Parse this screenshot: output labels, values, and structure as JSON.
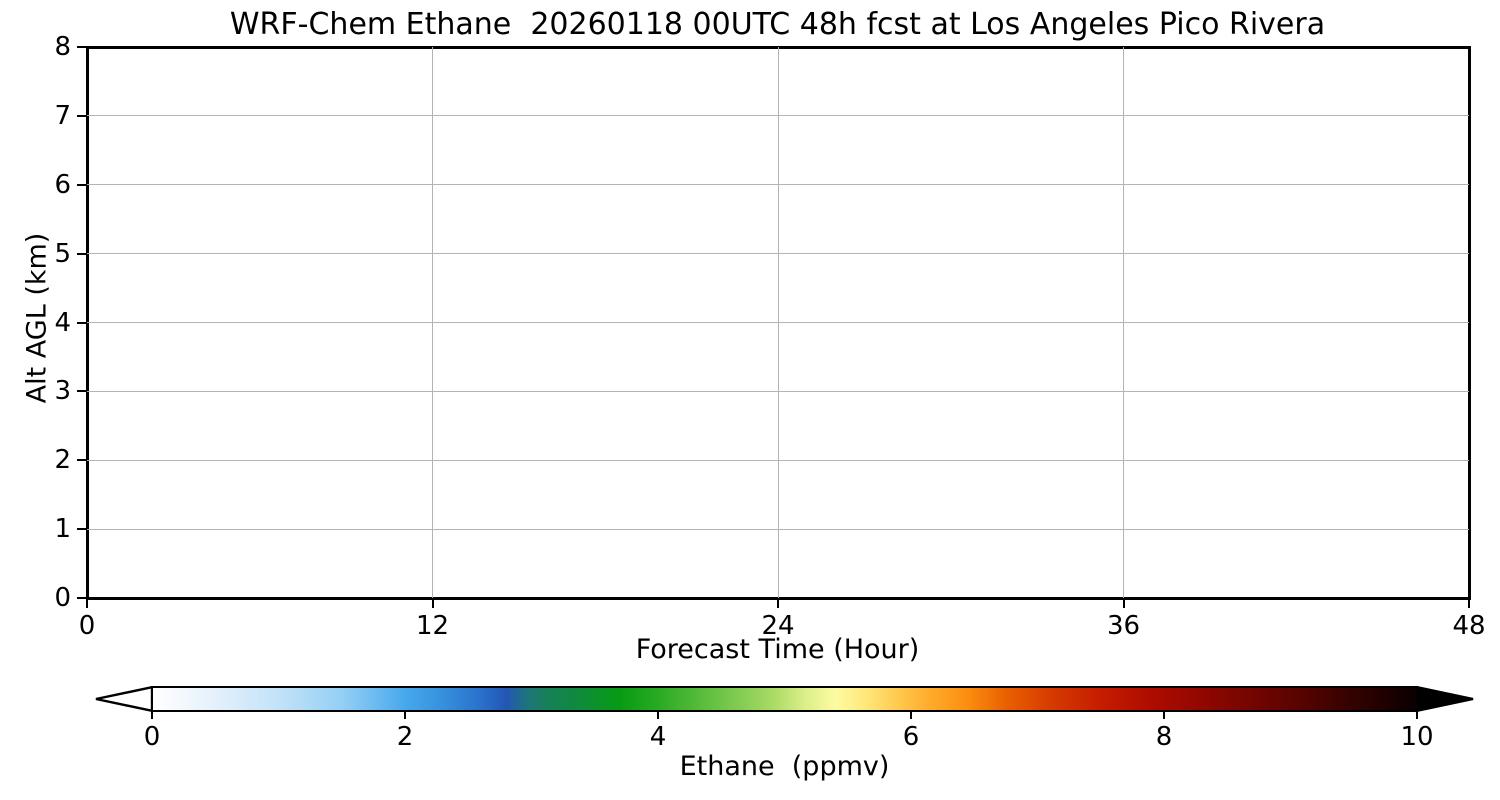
{
  "chart_data": {
    "type": "heatmap",
    "title": "WRF-Chem Ethane  20260118 00UTC 48h fcst at Los Angeles Pico Rivera",
    "xlabel": "Forecast Time (Hour)",
    "ylabel": "Alt AGL (km)",
    "xlim": [
      0,
      48
    ],
    "ylim": [
      0,
      8
    ],
    "x_ticks": [
      0,
      12,
      24,
      36,
      48
    ],
    "y_ticks": [
      0,
      1,
      2,
      3,
      4,
      5,
      6,
      7,
      8
    ],
    "x_gridlines": [
      12,
      24,
      36
    ],
    "y_gridlines": [
      1,
      2,
      3,
      4,
      5,
      6,
      7
    ],
    "grid": true,
    "grid_color": "#b3b3b3",
    "spine_color": "#000000",
    "background_color": "#ffffff",
    "field": {
      "appearance": "plot area is uniformly white; no ethane signal above the colormap minimum is shown",
      "uniform_value_ppmv": 0
    },
    "colorbar": {
      "label": "Ethane  (ppmv)",
      "orientation": "horizontal",
      "range": [
        0,
        10
      ],
      "tick_values": [
        0,
        2,
        4,
        6,
        8,
        10
      ],
      "extend": "both",
      "extend_min_color": "#ffffff",
      "extend_max_color": "#000000",
      "stops": [
        [
          0.0,
          "#ffffff"
        ],
        [
          0.5,
          "#e4f0fb"
        ],
        [
          1.0,
          "#c2e2f8"
        ],
        [
          1.5,
          "#94cff4"
        ],
        [
          2.0,
          "#47a8ec"
        ],
        [
          2.3,
          "#3690dc"
        ],
        [
          2.6,
          "#2a70cc"
        ],
        [
          2.8,
          "#2356b4"
        ],
        [
          2.95,
          "#1e7380"
        ],
        [
          3.1,
          "#187f5c"
        ],
        [
          3.4,
          "#0e8c38"
        ],
        [
          3.7,
          "#079c14"
        ],
        [
          4.0,
          "#2aaa24"
        ],
        [
          4.3,
          "#52ba38"
        ],
        [
          4.6,
          "#7cca4e"
        ],
        [
          4.9,
          "#a8da64"
        ],
        [
          5.15,
          "#d8ee86"
        ],
        [
          5.4,
          "#fdfba2"
        ],
        [
          5.65,
          "#ffe779"
        ],
        [
          5.9,
          "#ffc94e"
        ],
        [
          6.15,
          "#ffab2c"
        ],
        [
          6.45,
          "#fb8e10"
        ],
        [
          6.75,
          "#ea6100"
        ],
        [
          7.1,
          "#d63c00"
        ],
        [
          7.5,
          "#c61d00"
        ],
        [
          7.9,
          "#ae0c00"
        ],
        [
          8.3,
          "#920700"
        ],
        [
          8.7,
          "#740500"
        ],
        [
          9.1,
          "#560300"
        ],
        [
          9.5,
          "#330200"
        ],
        [
          10.0,
          "#0a0000"
        ]
      ]
    }
  }
}
